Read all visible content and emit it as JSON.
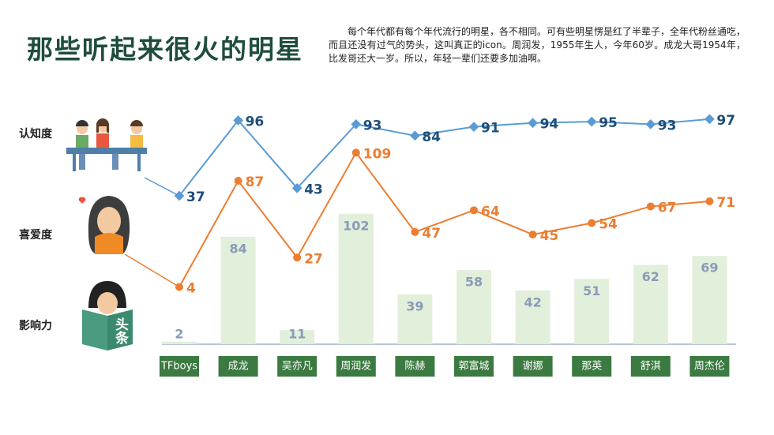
{
  "chart_data": {
    "type": "combo",
    "title": "那些听起来很火的明星",
    "subtitle": "每个年代都有每个年代流行的明星，各不相同。可有些明星愣是红了半辈子，全年代粉丝通吃，而且还没有过气的势头，这叫真正的icon。周润发，1955年生人，今年60岁。成龙大哥1954年，比发哥还大一岁。所以，年轻一辈们还要多加油啊。",
    "categories": [
      "TFboys",
      "成龙",
      "吴亦凡",
      "周润发",
      "陈赫",
      "郭富城",
      "谢娜",
      "那英",
      "舒淇",
      "周杰伦"
    ],
    "series": [
      {
        "name": "认知度",
        "type": "line",
        "color": "#5b9bd5",
        "values": [
          37,
          96,
          43,
          93,
          84,
          91,
          94,
          95,
          93,
          97
        ]
      },
      {
        "name": "喜爱度",
        "type": "line",
        "color": "#ed7d31",
        "values": [
          4,
          87,
          27,
          109,
          47,
          64,
          45,
          54,
          67,
          71
        ]
      },
      {
        "name": "影响力",
        "type": "bar",
        "color": "#e2efda",
        "values": [
          2,
          84,
          11,
          102,
          39,
          58,
          42,
          51,
          62,
          69
        ]
      }
    ],
    "annotations": [
      "头条"
    ]
  }
}
